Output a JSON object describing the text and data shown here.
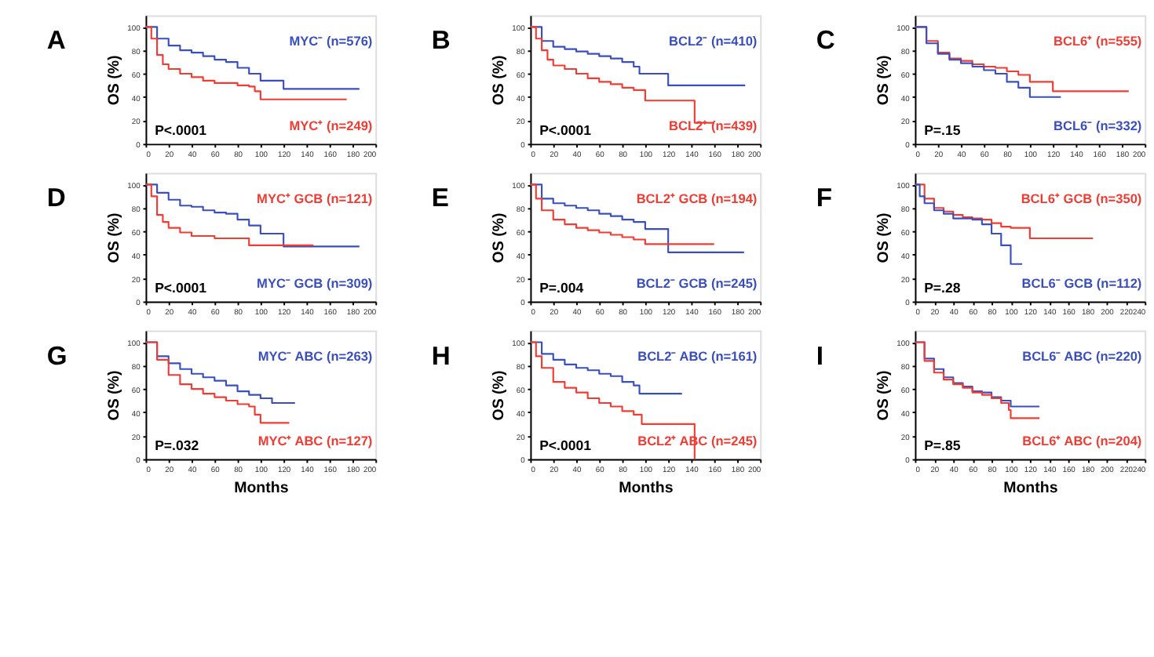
{
  "chart_data": [
    {
      "type": "step",
      "title": "A",
      "ylabel": "OS (%)",
      "xlim": [
        0,
        200
      ],
      "xticks": [
        0,
        20,
        40,
        60,
        80,
        100,
        120,
        140,
        160,
        180,
        200
      ],
      "ylim": [
        0,
        110
      ],
      "yticks": [
        0,
        20,
        40,
        60,
        80,
        100
      ],
      "grid": false,
      "legend": false,
      "marker": "none",
      "line_style": "solid",
      "annotations": [
        "P<.0001"
      ],
      "series": [
        {
          "name": "MYC⁻ (n=576)",
          "color": "#3a4fbf",
          "x": [
            0,
            10,
            20,
            30,
            40,
            50,
            60,
            70,
            80,
            90,
            100,
            110,
            120,
            186
          ],
          "values": [
            100,
            90,
            84,
            80,
            78,
            75,
            72,
            70,
            65,
            60,
            54,
            54,
            47,
            47
          ]
        },
        {
          "name": "MYC⁺ (n=249)",
          "color": "#f03c32",
          "x": [
            0,
            5,
            10,
            15,
            20,
            30,
            40,
            50,
            60,
            80,
            90,
            95,
            100,
            175
          ],
          "values": [
            100,
            90,
            76,
            68,
            64,
            60,
            57,
            54,
            52,
            50,
            49,
            45,
            38,
            38
          ]
        }
      ]
    },
    {
      "type": "step",
      "title": "B",
      "ylabel": "OS (%)",
      "xlim": [
        0,
        200
      ],
      "xticks": [
        0,
        20,
        40,
        60,
        80,
        100,
        120,
        140,
        160,
        180,
        200
      ],
      "ylim": [
        0,
        110
      ],
      "yticks": [
        0,
        20,
        40,
        60,
        80,
        100
      ],
      "grid": false,
      "legend": false,
      "marker": "none",
      "line_style": "solid",
      "annotations": [
        "P<.0001"
      ],
      "series": [
        {
          "name": "BCL2⁻ (n=410)",
          "color": "#3a4fbf",
          "x": [
            0,
            10,
            20,
            30,
            40,
            50,
            60,
            70,
            80,
            90,
            95,
            110,
            120,
            187
          ],
          "values": [
            100,
            88,
            83,
            81,
            79,
            77,
            75,
            73,
            70,
            66,
            60,
            60,
            50,
            50
          ]
        },
        {
          "name": "BCL2⁺ (n=439)",
          "color": "#f03c32",
          "x": [
            0,
            5,
            10,
            15,
            20,
            30,
            40,
            50,
            60,
            70,
            80,
            90,
            100,
            143,
            160
          ],
          "values": [
            100,
            90,
            80,
            72,
            67,
            64,
            60,
            56,
            53,
            51,
            48,
            46,
            37,
            18,
            18
          ]
        }
      ]
    },
    {
      "type": "step",
      "title": "C",
      "ylabel": "OS (%)",
      "xlim": [
        0,
        200
      ],
      "xticks": [
        0,
        20,
        40,
        60,
        80,
        100,
        120,
        140,
        160,
        180,
        200
      ],
      "ylim": [
        0,
        110
      ],
      "yticks": [
        0,
        20,
        40,
        60,
        80,
        100
      ],
      "grid": false,
      "legend": false,
      "marker": "none",
      "line_style": "solid",
      "annotations": [
        "P=.15"
      ],
      "series": [
        {
          "name": "BCL6⁺ (n=555)",
          "color": "#f03c32",
          "x": [
            0,
            10,
            20,
            30,
            40,
            50,
            60,
            70,
            80,
            90,
            100,
            120,
            186
          ],
          "values": [
            100,
            88,
            78,
            73,
            71,
            68,
            66,
            65,
            62,
            59,
            53,
            45,
            45
          ]
        },
        {
          "name": "BCL6⁻ (n=332)",
          "color": "#3a4fbf",
          "x": [
            0,
            10,
            20,
            30,
            40,
            50,
            60,
            70,
            80,
            90,
            100,
            127
          ],
          "values": [
            100,
            86,
            77,
            72,
            69,
            66,
            63,
            60,
            53,
            48,
            40,
            40
          ]
        }
      ]
    },
    {
      "type": "step",
      "title": "D",
      "ylabel": "OS (%)",
      "xlim": [
        0,
        200
      ],
      "xticks": [
        0,
        20,
        40,
        60,
        80,
        100,
        120,
        140,
        160,
        180,
        200
      ],
      "ylim": [
        0,
        110
      ],
      "yticks": [
        0,
        20,
        40,
        60,
        80,
        100
      ],
      "grid": false,
      "legend": false,
      "marker": "none",
      "line_style": "solid",
      "annotations": [
        "P<.0001"
      ],
      "series": [
        {
          "name": "MYC⁻ GCB (n=309)",
          "color": "#3a4fbf",
          "x": [
            0,
            10,
            20,
            30,
            40,
            50,
            60,
            70,
            80,
            90,
            100,
            120,
            186
          ],
          "values": [
            100,
            93,
            87,
            82,
            81,
            78,
            76,
            75,
            70,
            65,
            58,
            47,
            47
          ]
        },
        {
          "name": "MYC⁺ GCB (n=121)",
          "color": "#f03c32",
          "x": [
            0,
            5,
            10,
            15,
            20,
            30,
            40,
            60,
            90,
            146
          ],
          "values": [
            100,
            90,
            74,
            68,
            63,
            59,
            56,
            54,
            48,
            48
          ]
        }
      ]
    },
    {
      "type": "step",
      "title": "E",
      "ylabel": "OS (%)",
      "xlim": [
        0,
        200
      ],
      "xticks": [
        0,
        20,
        40,
        60,
        80,
        100,
        120,
        140,
        160,
        180,
        200
      ],
      "ylim": [
        0,
        110
      ],
      "yticks": [
        0,
        20,
        40,
        60,
        80,
        100
      ],
      "grid": false,
      "legend": false,
      "marker": "none",
      "line_style": "solid",
      "annotations": [
        "P=.004"
      ],
      "series": [
        {
          "name": "BCL2⁻ GCB (n=245)",
          "color": "#3a4fbf",
          "x": [
            0,
            10,
            20,
            30,
            40,
            50,
            60,
            70,
            80,
            90,
            100,
            120,
            186
          ],
          "values": [
            100,
            88,
            84,
            82,
            80,
            78,
            75,
            73,
            70,
            68,
            62,
            42,
            42
          ]
        },
        {
          "name": "BCL2⁺ GCB (n=194)",
          "color": "#f03c32",
          "x": [
            0,
            5,
            10,
            20,
            30,
            40,
            50,
            60,
            70,
            80,
            90,
            100,
            160
          ],
          "values": [
            100,
            88,
            78,
            70,
            66,
            63,
            61,
            59,
            57,
            55,
            53,
            49,
            49
          ]
        }
      ]
    },
    {
      "type": "step",
      "title": "F",
      "ylabel": "OS (%)",
      "xlim": [
        0,
        240
      ],
      "xticks": [
        0,
        20,
        40,
        60,
        80,
        100,
        120,
        140,
        160,
        180,
        200,
        220,
        240
      ],
      "ylim": [
        0,
        110
      ],
      "yticks": [
        0,
        20,
        40,
        60,
        80,
        100
      ],
      "grid": false,
      "legend": false,
      "marker": "none",
      "line_style": "solid",
      "annotations": [
        "P=.28"
      ],
      "series": [
        {
          "name": "BCL6⁺ GCB (n=350)",
          "color": "#f03c32",
          "x": [
            0,
            10,
            20,
            30,
            40,
            50,
            60,
            70,
            80,
            90,
            100,
            120,
            186
          ],
          "values": [
            100,
            88,
            80,
            77,
            74,
            72,
            71,
            70,
            67,
            64,
            63,
            54,
            54
          ]
        },
        {
          "name": "BCL6⁻ GCB (n=112)",
          "color": "#3a4fbf",
          "x": [
            0,
            5,
            10,
            20,
            30,
            40,
            60,
            70,
            80,
            90,
            100,
            112
          ],
          "values": [
            100,
            90,
            84,
            78,
            75,
            71,
            70,
            66,
            58,
            48,
            32,
            32
          ]
        }
      ]
    },
    {
      "type": "step",
      "title": "G",
      "xlabel": "Months",
      "ylabel": "OS (%)",
      "xlim": [
        0,
        200
      ],
      "xticks": [
        0,
        20,
        40,
        60,
        80,
        100,
        120,
        140,
        160,
        180,
        200
      ],
      "ylim": [
        0,
        110
      ],
      "yticks": [
        0,
        20,
        40,
        60,
        80,
        100
      ],
      "grid": false,
      "legend": false,
      "marker": "none",
      "line_style": "solid",
      "annotations": [
        "P=.032"
      ],
      "series": [
        {
          "name": "MYC⁻ ABC (n=263)",
          "color": "#3a4fbf",
          "x": [
            0,
            10,
            20,
            30,
            40,
            50,
            60,
            70,
            80,
            90,
            100,
            110,
            130
          ],
          "values": [
            100,
            88,
            82,
            77,
            73,
            70,
            67,
            63,
            58,
            55,
            52,
            48,
            48
          ]
        },
        {
          "name": "MYC⁺ ABC (n=127)",
          "color": "#f03c32",
          "x": [
            0,
            10,
            20,
            30,
            40,
            50,
            60,
            70,
            80,
            90,
            95,
            100,
            125
          ],
          "values": [
            100,
            85,
            72,
            64,
            60,
            56,
            53,
            50,
            47,
            45,
            38,
            31,
            31
          ]
        }
      ]
    },
    {
      "type": "step",
      "title": "H",
      "xlabel": "Months",
      "ylabel": "OS (%)",
      "xlim": [
        0,
        200
      ],
      "xticks": [
        0,
        20,
        40,
        60,
        80,
        100,
        120,
        140,
        160,
        180,
        200
      ],
      "ylim": [
        0,
        110
      ],
      "yticks": [
        0,
        20,
        40,
        60,
        80,
        100
      ],
      "grid": false,
      "legend": false,
      "marker": "none",
      "line_style": "solid",
      "annotations": [
        "P<.0001"
      ],
      "series": [
        {
          "name": "BCL2⁻ ABC (n=161)",
          "color": "#3a4fbf",
          "x": [
            0,
            10,
            20,
            30,
            40,
            50,
            60,
            70,
            80,
            90,
            95,
            132
          ],
          "values": [
            100,
            90,
            85,
            81,
            78,
            76,
            73,
            71,
            66,
            63,
            56,
            56
          ]
        },
        {
          "name": "BCL2⁺ ABC (n=245)",
          "color": "#f03c32",
          "x": [
            0,
            5,
            10,
            20,
            30,
            40,
            50,
            60,
            70,
            80,
            90,
            97,
            143
          ],
          "values": [
            100,
            88,
            78,
            66,
            61,
            57,
            52,
            48,
            45,
            41,
            38,
            30,
            0
          ]
        }
      ]
    },
    {
      "type": "step",
      "title": "I",
      "xlabel": "Months",
      "ylabel": "OS (%)",
      "xlim": [
        0,
        240
      ],
      "xticks": [
        0,
        20,
        40,
        60,
        80,
        100,
        120,
        140,
        160,
        180,
        200,
        220,
        240
      ],
      "ylim": [
        0,
        110
      ],
      "yticks": [
        0,
        20,
        40,
        60,
        80,
        100
      ],
      "grid": false,
      "legend": false,
      "marker": "none",
      "line_style": "solid",
      "annotations": [
        "P=.85"
      ],
      "series": [
        {
          "name": "BCL6⁻ ABC (n=220)",
          "color": "#3a4fbf",
          "x": [
            0,
            10,
            20,
            30,
            40,
            50,
            60,
            70,
            80,
            90,
            100,
            130
          ],
          "values": [
            100,
            86,
            77,
            70,
            65,
            62,
            58,
            57,
            53,
            50,
            45,
            45
          ]
        },
        {
          "name": "BCL6⁺ ABC (n=204)",
          "color": "#f03c32",
          "x": [
            0,
            10,
            20,
            30,
            40,
            50,
            60,
            70,
            80,
            90,
            98,
            100,
            130
          ],
          "values": [
            100,
            84,
            74,
            68,
            64,
            61,
            57,
            55,
            52,
            48,
            42,
            35,
            35
          ]
        }
      ]
    }
  ]
}
